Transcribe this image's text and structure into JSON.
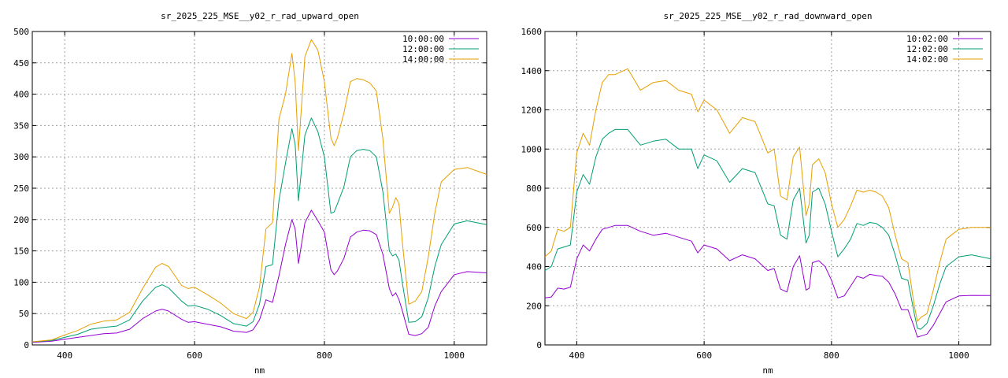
{
  "chart_data": [
    {
      "type": "line",
      "title": "sr_2025_225_MSE__y02_r_rad_upward_open",
      "xlabel": "nm",
      "ylabel": "",
      "xlim": [
        350,
        1050
      ],
      "ylim": [
        0,
        500
      ],
      "xticks": [
        400,
        600,
        800,
        1000
      ],
      "yticks": [
        0,
        50,
        100,
        150,
        200,
        250,
        300,
        350,
        400,
        450,
        500
      ],
      "grid": true,
      "legend_position": "top-right",
      "series": [
        {
          "name": "10:00:00",
          "color": "#9400d3",
          "x": [
            350,
            380,
            400,
            420,
            440,
            460,
            480,
            500,
            520,
            540,
            550,
            560,
            580,
            590,
            600,
            620,
            640,
            660,
            680,
            690,
            700,
            710,
            720,
            730,
            740,
            750,
            755,
            760,
            770,
            780,
            790,
            800,
            810,
            815,
            820,
            830,
            840,
            850,
            860,
            870,
            880,
            890,
            900,
            905,
            910,
            915,
            920,
            930,
            940,
            950,
            960,
            970,
            980,
            1000,
            1020,
            1050
          ],
          "y": [
            4,
            6,
            9,
            12,
            15,
            18,
            19,
            25,
            42,
            54,
            57,
            54,
            41,
            36,
            37,
            33,
            29,
            22,
            20,
            24,
            40,
            72,
            68,
            110,
            160,
            200,
            185,
            130,
            195,
            215,
            198,
            180,
            120,
            112,
            118,
            138,
            172,
            180,
            183,
            182,
            176,
            145,
            90,
            78,
            83,
            72,
            55,
            17,
            15,
            18,
            28,
            62,
            85,
            112,
            117,
            115
          ]
        },
        {
          "name": "12:00:00",
          "color": "#009e73",
          "x": [
            350,
            380,
            400,
            420,
            440,
            460,
            480,
            500,
            520,
            540,
            550,
            560,
            580,
            590,
            600,
            620,
            640,
            660,
            680,
            690,
            700,
            710,
            720,
            730,
            740,
            750,
            755,
            760,
            770,
            780,
            790,
            800,
            810,
            815,
            820,
            830,
            840,
            850,
            860,
            870,
            880,
            890,
            900,
            905,
            910,
            915,
            920,
            930,
            940,
            950,
            960,
            970,
            980,
            1000,
            1020,
            1050
          ],
          "y": [
            5,
            7,
            12,
            17,
            25,
            28,
            30,
            40,
            70,
            92,
            96,
            91,
            70,
            62,
            63,
            57,
            47,
            34,
            30,
            37,
            65,
            125,
            128,
            230,
            290,
            345,
            320,
            230,
            335,
            362,
            340,
            300,
            210,
            212,
            225,
            252,
            300,
            310,
            312,
            310,
            300,
            245,
            150,
            142,
            145,
            135,
            100,
            36,
            37,
            45,
            75,
            125,
            160,
            193,
            198,
            192
          ]
        },
        {
          "name": "14:00:00",
          "color": "#e69f00",
          "x": [
            350,
            380,
            400,
            420,
            440,
            460,
            480,
            500,
            520,
            540,
            550,
            560,
            580,
            590,
            600,
            620,
            640,
            660,
            680,
            690,
            700,
            710,
            720,
            730,
            740,
            750,
            755,
            760,
            770,
            780,
            790,
            800,
            810,
            815,
            820,
            830,
            840,
            850,
            860,
            870,
            880,
            890,
            900,
            905,
            910,
            915,
            920,
            930,
            940,
            950,
            960,
            970,
            980,
            1000,
            1020,
            1050
          ],
          "y": [
            5,
            8,
            16,
            23,
            33,
            38,
            40,
            52,
            90,
            124,
            130,
            125,
            95,
            90,
            92,
            80,
            67,
            50,
            42,
            52,
            92,
            185,
            195,
            360,
            400,
            465,
            420,
            310,
            460,
            487,
            470,
            420,
            330,
            318,
            330,
            370,
            420,
            425,
            423,
            418,
            405,
            330,
            210,
            220,
            235,
            225,
            165,
            65,
            70,
            85,
            140,
            210,
            260,
            280,
            283,
            272
          ]
        }
      ]
    },
    {
      "type": "line",
      "title": "sr_2025_225_MSE__y02_r_rad_downward_open",
      "xlabel": "nm",
      "ylabel": "",
      "xlim": [
        350,
        1050
      ],
      "ylim": [
        0,
        1600
      ],
      "xticks": [
        400,
        600,
        800,
        1000
      ],
      "yticks": [
        0,
        200,
        400,
        600,
        800,
        1000,
        1200,
        1400,
        1600
      ],
      "grid": true,
      "legend_position": "top-right",
      "series": [
        {
          "name": "10:02:00",
          "color": "#9400d3",
          "x": [
            350,
            360,
            370,
            380,
            390,
            400,
            410,
            420,
            430,
            440,
            450,
            460,
            480,
            500,
            520,
            540,
            560,
            580,
            590,
            600,
            620,
            640,
            660,
            680,
            700,
            710,
            720,
            730,
            740,
            750,
            760,
            765,
            770,
            780,
            790,
            800,
            810,
            820,
            830,
            840,
            850,
            860,
            870,
            880,
            890,
            900,
            910,
            920,
            930,
            935,
            940,
            950,
            960,
            970,
            980,
            1000,
            1020,
            1050
          ],
          "y": [
            240,
            245,
            290,
            285,
            295,
            440,
            510,
            480,
            540,
            590,
            600,
            610,
            610,
            580,
            560,
            570,
            550,
            530,
            470,
            510,
            490,
            430,
            460,
            440,
            380,
            390,
            285,
            270,
            400,
            455,
            280,
            290,
            420,
            430,
            400,
            330,
            240,
            250,
            300,
            350,
            340,
            360,
            355,
            350,
            320,
            260,
            180,
            180,
            90,
            40,
            45,
            55,
            100,
            160,
            220,
            250,
            253,
            252
          ]
        },
        {
          "name": "12:02:00",
          "color": "#009e73",
          "x": [
            350,
            360,
            370,
            380,
            390,
            400,
            410,
            420,
            430,
            440,
            450,
            460,
            480,
            500,
            520,
            540,
            560,
            580,
            590,
            600,
            620,
            640,
            660,
            680,
            700,
            710,
            720,
            730,
            740,
            750,
            760,
            765,
            770,
            780,
            790,
            800,
            810,
            820,
            830,
            840,
            850,
            860,
            870,
            880,
            890,
            900,
            910,
            920,
            930,
            935,
            940,
            950,
            960,
            970,
            980,
            1000,
            1020,
            1050
          ],
          "y": [
            380,
            400,
            490,
            500,
            510,
            780,
            870,
            820,
            960,
            1050,
            1080,
            1100,
            1100,
            1020,
            1040,
            1050,
            1000,
            1000,
            900,
            970,
            940,
            830,
            900,
            880,
            720,
            710,
            560,
            540,
            740,
            800,
            520,
            560,
            780,
            800,
            720,
            580,
            450,
            490,
            540,
            620,
            610,
            625,
            620,
            600,
            560,
            460,
            340,
            330,
            160,
            85,
            80,
            110,
            200,
            310,
            400,
            450,
            460,
            440
          ]
        },
        {
          "name": "14:02:00",
          "color": "#e69f00",
          "x": [
            350,
            360,
            370,
            380,
            390,
            400,
            410,
            420,
            430,
            440,
            450,
            460,
            480,
            500,
            520,
            540,
            560,
            580,
            590,
            600,
            620,
            640,
            660,
            680,
            700,
            710,
            720,
            730,
            740,
            750,
            760,
            765,
            770,
            780,
            790,
            800,
            810,
            820,
            830,
            840,
            850,
            860,
            870,
            880,
            890,
            900,
            910,
            920,
            930,
            935,
            940,
            950,
            960,
            970,
            980,
            1000,
            1020,
            1050
          ],
          "y": [
            450,
            480,
            590,
            580,
            600,
            980,
            1080,
            1020,
            1200,
            1340,
            1380,
            1380,
            1410,
            1300,
            1340,
            1350,
            1300,
            1280,
            1190,
            1250,
            1200,
            1080,
            1160,
            1140,
            980,
            1000,
            760,
            740,
            960,
            1010,
            660,
            720,
            920,
            950,
            880,
            720,
            600,
            640,
            710,
            790,
            780,
            790,
            780,
            760,
            700,
            560,
            440,
            420,
            200,
            120,
            140,
            160,
            280,
            420,
            540,
            590,
            600,
            600
          ]
        }
      ]
    }
  ]
}
